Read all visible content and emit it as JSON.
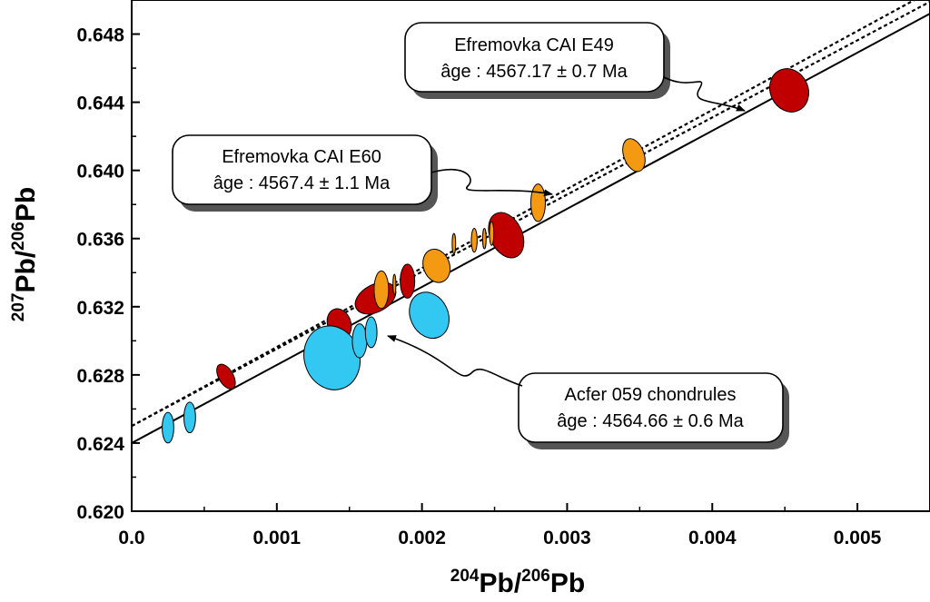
{
  "chart_data": {
    "type": "scatter",
    "xlabel": {
      "sup1": "204",
      "base1": "Pb/",
      "sup2": "206",
      "base2": "Pb"
    },
    "ylabel": {
      "sup1": "207",
      "base1": "Pb/",
      "sup2": "206",
      "base2": "Pb"
    },
    "xlim": [
      0,
      0.0055
    ],
    "ylim": [
      0.62,
      0.65
    ],
    "x_ticks": [
      "0.0",
      "0.001",
      "0.002",
      "0.003",
      "0.004",
      "0.005"
    ],
    "x_tick_values": [
      0,
      0.001,
      0.002,
      0.003,
      0.004,
      0.005
    ],
    "y_ticks": [
      "0.620",
      "0.624",
      "0.628",
      "0.632",
      "0.636",
      "0.640",
      "0.644",
      "0.648"
    ],
    "y_tick_values": [
      0.62,
      0.624,
      0.628,
      0.632,
      0.636,
      0.64,
      0.644,
      0.648
    ],
    "colors": {
      "red": "#c00000",
      "orange": "#f39a12",
      "blue": "#33c8f2",
      "stroke": "#000000"
    },
    "isochrons": [
      {
        "name": "Acfer 059 chondrules",
        "style": "solid",
        "x": [
          0,
          0.0055
        ],
        "y": [
          0.624,
          0.6492
        ]
      },
      {
        "name": "Efremovka CAI E60",
        "style": "dashed",
        "x": [
          0,
          0.0055
        ],
        "y": [
          0.625,
          0.6505
        ]
      },
      {
        "name": "Efremovka CAI E49",
        "style": "dashed",
        "x": [
          0,
          0.0055
        ],
        "y": [
          0.625,
          0.6499
        ]
      }
    ],
    "series": [
      {
        "color": "red",
        "points": [
          {
            "x": 0.00065,
            "y": 0.6279,
            "rx": 5e-05,
            "ry": 0.0008,
            "angle": -30
          },
          {
            "x": 0.00143,
            "y": 0.631,
            "rx": 8e-05,
            "ry": 0.0009,
            "angle": -20
          },
          {
            "x": 0.00168,
            "y": 0.6325,
            "rx": 0.00015,
            "ry": 0.0008,
            "angle": -28
          },
          {
            "x": 0.0019,
            "y": 0.6335,
            "rx": 5e-05,
            "ry": 0.001,
            "angle": 0
          },
          {
            "x": 0.00258,
            "y": 0.6362,
            "rx": 0.00011,
            "ry": 0.0014,
            "angle": -25
          },
          {
            "x": 0.00453,
            "y": 0.6447,
            "rx": 0.00013,
            "ry": 0.0013,
            "angle": -25
          }
        ]
      },
      {
        "color": "orange",
        "points": [
          {
            "x": 0.00172,
            "y": 0.633,
            "rx": 5e-05,
            "ry": 0.0011,
            "angle": 0
          },
          {
            "x": 0.00181,
            "y": 0.6333,
            "rx": 1e-05,
            "ry": 0.0006,
            "angle": 0
          },
          {
            "x": 0.0021,
            "y": 0.6344,
            "rx": 9e-05,
            "ry": 0.001,
            "angle": -20
          },
          {
            "x": 0.00222,
            "y": 0.6357,
            "rx": 1.2e-05,
            "ry": 0.0006,
            "angle": 0
          },
          {
            "x": 0.00236,
            "y": 0.6359,
            "rx": 2e-05,
            "ry": 0.0007,
            "angle": 0
          },
          {
            "x": 0.00243,
            "y": 0.636,
            "rx": 1.2e-05,
            "ry": 0.0006,
            "angle": 0
          },
          {
            "x": 0.00248,
            "y": 0.6363,
            "rx": 1.5e-05,
            "ry": 0.0007,
            "angle": 0
          },
          {
            "x": 0.0028,
            "y": 0.6381,
            "rx": 5e-05,
            "ry": 0.0011,
            "angle": 0
          },
          {
            "x": 0.00346,
            "y": 0.6409,
            "rx": 7e-05,
            "ry": 0.001,
            "angle": -20
          }
        ]
      },
      {
        "color": "blue",
        "points": [
          {
            "x": 0.00025,
            "y": 0.6249,
            "rx": 4e-05,
            "ry": 0.0009,
            "angle": 0
          },
          {
            "x": 0.0004,
            "y": 0.6255,
            "rx": 4e-05,
            "ry": 0.0009,
            "angle": 0
          },
          {
            "x": 0.00138,
            "y": 0.629,
            "rx": 0.00019,
            "ry": 0.0019,
            "angle": -18
          },
          {
            "x": 0.00157,
            "y": 0.63,
            "rx": 5e-05,
            "ry": 0.001,
            "angle": 0
          },
          {
            "x": 0.00165,
            "y": 0.6305,
            "rx": 4e-05,
            "ry": 0.0009,
            "angle": 0
          },
          {
            "x": 0.00205,
            "y": 0.6315,
            "rx": 0.00013,
            "ry": 0.0014,
            "angle": -25
          }
        ]
      }
    ],
    "annotations": [
      {
        "id": "e49",
        "lines": [
          "Efremovka CAI E49",
          "âge : 4567.17 ± 0.7 Ma"
        ]
      },
      {
        "id": "e60",
        "lines": [
          "Efremovka CAI E60",
          "âge : 4567.4 ± 1.1 Ma"
        ]
      },
      {
        "id": "acfer",
        "lines": [
          "Acfer 059 chondrules",
          "âge : 4564.66 ± 0.6 Ma"
        ]
      }
    ]
  }
}
